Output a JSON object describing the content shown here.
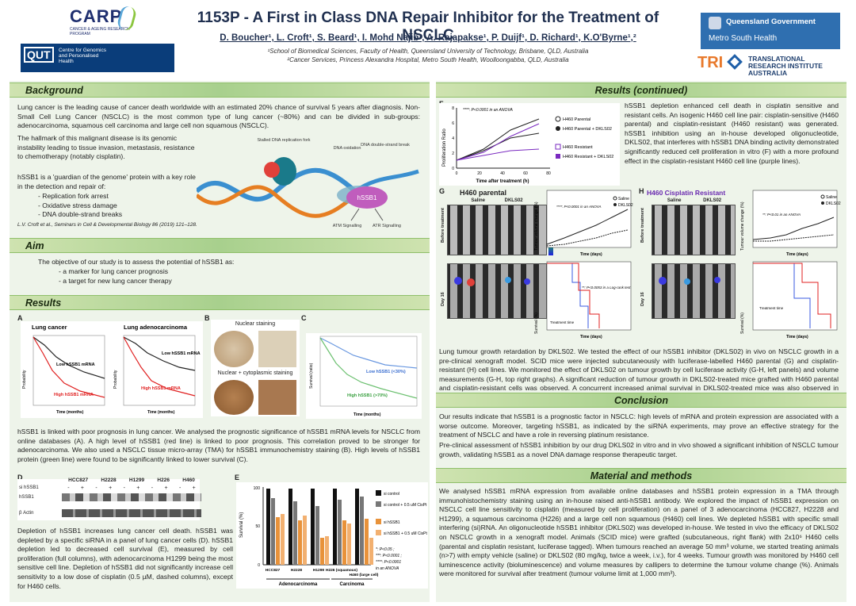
{
  "header": {
    "title": "1153P - A First in Class DNA Repair Inhibitor for the Treatment of NSCLC",
    "authors": "D. Boucher¹, L. Croft¹, S. Beard¹, I. Mohd Najib¹, A. Rajapakse¹, P. Duijf¹, D. Richard¹, K.O'Byrne¹,²",
    "affil1": "¹School of Biomedical Sciences, Faculty of Health, Queensland University of Technology, Brisbane, QLD, Australia",
    "affil2": "²Cancer Services, Princess Alexandra Hospital, Metro South Health, Woolloongabba, QLD, Australia",
    "logos": {
      "carp": "CARP",
      "carp_sub": "CANCER & AGEING RESEARCH PROGRAM",
      "qut": "QUT",
      "qut_sub": "Centre for Genomics and Personalised Health",
      "qld": "Queensland Government",
      "msh": "Metro South Health",
      "tri": "TRI",
      "tri_sub": "TRANSLATIONAL RESEARCH INSTITUTE AUSTRALIA"
    }
  },
  "sections": {
    "background": "Background",
    "aim": "Aim",
    "results": "Results",
    "results_cont": "Results (continued)",
    "conclusion": "Conclusion",
    "methods": "Material and methods"
  },
  "background": {
    "p1": "Lung cancer is the leading cause of cancer death worldwide with an estimated 20% chance of survival 5 years after diagnosis. Non-Small Cell Lung Cancer (NSCLC) is the most common type of lung cancer (~80%) and can be divided in sub-groups: adenocarcinoma, squamous cell carcinoma and large cell non squamous (NSCLC).",
    "p2": "The hallmark of this malignant disease is its genomic instability leading to tissue invasion, metastasis, resistance to chemotherapy (notably cisplatin).",
    "p3": "hSSB1 is a 'guardian of the genome' protein with a key role in the detection and repair of:",
    "items": [
      "- Replication fork arrest",
      "- Oxidative stress damage",
      "- DNA double-strand breaks"
    ],
    "ref": "L.V. Croft et al., Seminars in Cell & Developmental Biology 86 (2019) 121–128.",
    "diagram": {
      "fork": "Stalled DNA replication fork",
      "oxidation": "DNA oxidation",
      "dsb": "DNA double-strand break",
      "hub": "hSSB1",
      "atm": "ATM Signalling",
      "atr": "ATR Signalling"
    }
  },
  "aim": {
    "intro": "The objective of our study is to assess the potential of hSSB1 as:",
    "items": [
      "- a marker for lung cancer prognosis",
      "- a target for new lung cancer therapy"
    ]
  },
  "results": {
    "A": {
      "letter": "A",
      "t1": "Lung cancer",
      "t2": "Lung adenocarcinoma",
      "low": "Low hSSB1 mRNA",
      "high": "High hSSB1 mRNA",
      "ylabel": "Probability",
      "xlabel": "Time (months)"
    },
    "B": {
      "letter": "B",
      "nuclear": "Nuclear staining",
      "nuccyto": "Nuclear + cytoplasmic staining"
    },
    "C": {
      "letter": "C",
      "low": "Low hSSB1 (<30%)",
      "high": "High hSSB1 (>70%)",
      "ylabel": "Survival (ratio)",
      "xlabel": "Time (months)"
    },
    "abc_text": "hSSB1 is linked with poor prognosis in lung cancer. We analysed the prognostic significance of hSSB1 mRNA levels for NSCLC from online databases (A). A high level of hSSB1 (red line) is linked to poor prognosis. This correlation proved to be stronger for adenocarcinoma. We also used a NSCLC tissue micro-array (TMA) for hSSB1 immunochemistry staining (B). High levels of hSSB1 protein (green line) were found to be significantly linked to lower survival (C).",
    "D": {
      "letter": "D",
      "cells": [
        "HCC827",
        "H2228",
        "H1299",
        "H226",
        "H460"
      ],
      "row1": "si hSSB1",
      "row2": "hSSB1",
      "row3": "β Actin",
      "signs": [
        "-",
        "+",
        "-",
        "+",
        "-",
        "+",
        "-",
        "+",
        "-",
        "+"
      ]
    },
    "E": {
      "letter": "E",
      "ylabel": "Survival (%)",
      "cells": [
        "HCC827",
        "H2228",
        "H1299",
        "H226 (squamous)",
        "H460 (large cell)"
      ],
      "groups": [
        "Adenocarcinoma",
        "Carcinoma"
      ],
      "legend": [
        "si control",
        "si control + 0.5 uM CisPt",
        "si hSSB1",
        "si hSSB1 + 0.5 uM CisPt"
      ],
      "stats": [
        "*: P<0.05 ;",
        "***: P<0.0001 ;",
        "****: P<0.0001",
        "in an ANOVA"
      ],
      "ticks": [
        "0",
        "50",
        "100"
      ]
    },
    "de_text": "Depletion of hSSB1 increases lung cancer cell death. hSSB1 was depleted by a specific siRNA in a panel of lung cancer cells (D). hSSB1 depletion led to decreased cell survival (E), measured by cell proliferation (full columns), with adenocarcinoma H1299 being the most sensitive cell line. Depletion of hSSB1 did not significantly increase cell sensitivity to a low dose of cisplatin (0.5 µM, dashed columns), except for H460 cells."
  },
  "results2": {
    "F": {
      "letter": "F",
      "ylabel": "Proliferation Ratio",
      "xlabel": "Time after treatment (h)",
      "stat": "****: P<0.0001 in an ANOVA",
      "legend": [
        "H460 Parental",
        "H460 Parental + DKLS02",
        "H460 Resistant",
        "H460 Resistant + DKLS02"
      ],
      "xticks": [
        "0",
        "20",
        "40",
        "60",
        "80"
      ],
      "yticks": [
        "0",
        "2",
        "4",
        "6",
        "8"
      ]
    },
    "f_text": "hSSB1 depletion enhanced cell death in cisplatin sensitive and resistant cells. An isogenic H460 cell line pair: cisplatin-sensitive (H460 parental) and cisplatin-resistant (H460 resistant) was generated. hSSB1 inhibition using an in-house developed oligonucleotide, DKLS02, that interferes with hSSB1 DNA binding activity demonstrated significantly reduced cell proliferation in vitro (F) with a more profound effect in the cisplatin-resistant H460 cell line (purple lines).",
    "G": {
      "letter": "G",
      "title": "H460 parental",
      "saline": "Saline",
      "dkls": "DKLS02",
      "before": "Before treatment",
      "day": "Day 16",
      "tv": "Tumour volume change (%)",
      "surv": "Survival (%)",
      "days": "Time (days)",
      "stat1": "****: P<0.0001 in an ANOVA",
      "stat2": "**: P<0.0053 in a Log-rank test",
      "treat": "Treatment time"
    },
    "H": {
      "letter": "H",
      "title": "H460 Cisplatin Resistant",
      "saline": "Saline",
      "dkls": "DKLS02",
      "before": "Before treatment",
      "day": "Day 16",
      "tv": "Tumour volume change (%)",
      "surv": "Survival (%)",
      "days": "Time (days)",
      "stat1": "**: P<0.01 in an ANOVA",
      "treat": "Treatment time"
    },
    "gh_text": "Lung tumour growth retardation by DKLS02. We tested the effect of our hSSB1 inhibitor (DKLS02) in vivo on NSCLC growth in a pre-clinical xenograft model. SCID mice were injected subcutaneously with luciferase-labelled H460 parental (G) and cisplatin-resistant (H) cell lines. We monitored the effect of DKLS02 on tumour growth by cell luciferase activity (G-H, left panels) and volume measurements (G-H, top right graphs). A significant reduction of tumour growth in DKLS02-treated mice grafted with H460 parental and cisplatin-resistant cells was observed. A concurrent increased animal survival in DKLS02-treated mice was also observed in both models. (G-H, bottom graphs)."
  },
  "conclusion": {
    "p1": "Our results indicate that hSSB1 is a prognostic factor in NSCLC: high levels of mRNA and protein expression are associated with a worse outcome. Moreover, targeting hSSB1, as indicated by the siRNA experiments, may prove an effective strategy for the treatment of NSCLC and have a role in reversing platinum resistance.",
    "p2": "Pre-clinical assessment of hSSB1 inhibition by our drug DKLS02 in vitro and in vivo showed a significant inhibition of NSCLC tumour growth, validating hSSB1 as a novel DNA damage response therapeutic target."
  },
  "methods": {
    "p": "We analysed hSSB1 mRNA expression from available online databases and hSSB1 protein expression in a TMA through immunohistochemistry staining using an in-house raised anti-hSSB1 antibody. We explored the impact of hSSB1 expression on NSCLC cell line sensitivity to cisplatin (measured by cell proliferation) on a panel of 3 adenocarcinoma (HCC827, H2228 and H1299), a squamous carcinoma (H226) and a large cell non squamous (H460) cell lines. We depleted hSSB1 with specific small interfering (si)RNA. An oligonucleotide hSSB1 inhibitor (DKLS02) was developed in-house. We tested in vivo the efficacy of DKLS02 on NSCLC growth in a xenograft model. Animals (SCID mice) were grafted (subcutaneous, right flank) with 2x10⁶ H460 cells (parental and cisplatin resistant, luciferase tagged). When tumours reached an average 50 mm³ volume, we started treating animals (n>7) with empty vehicle (saline) or DKLS02 (80 mg/kg, twice a week, i.v.), for 4 weeks. Tumour growth was monitored by H460 cell luminescence activity (bioluminescence) and volume measures by callipers to determine the tumour volume change (%). Animals were monitored for survival after treatment (tumour volume limit at 1,000 mm³)."
  }
}
